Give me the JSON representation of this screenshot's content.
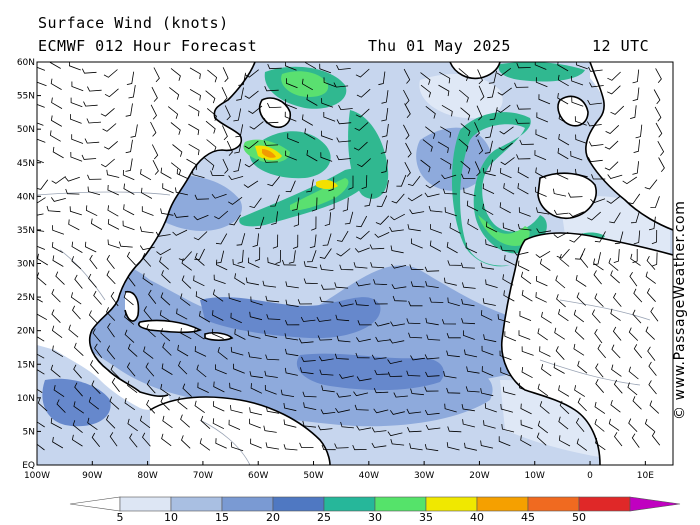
{
  "header": {
    "title": "Surface Wind (knots)",
    "model": "ECMWF 012 Hour Forecast",
    "date": "Thu 01 May 2025",
    "time": "12 UTC"
  },
  "credit": "© www.PassageWeather.com",
  "axes": {
    "lat_labels": [
      "60N",
      "55N",
      "50N",
      "45N",
      "40N",
      "35N",
      "30N",
      "25N",
      "20N",
      "15N",
      "10N",
      "5N",
      "EQ"
    ],
    "lon_labels": [
      "100W",
      "90W",
      "80W",
      "70W",
      "60W",
      "50W",
      "40W",
      "30W",
      "20W",
      "10W",
      "0",
      "10E"
    ],
    "lat_range": [
      0,
      60
    ],
    "lon_range": [
      -100,
      15
    ]
  },
  "colorbar": {
    "labels": [
      "5",
      "10",
      "15",
      "20",
      "25",
      "30",
      "35",
      "40",
      "45",
      "50"
    ],
    "colors": [
      "#ffffff",
      "#dde6f4",
      "#a9bfe2",
      "#7a9ad3",
      "#4f78c2",
      "#26b79a",
      "#55e36a",
      "#f0e800",
      "#f5a000",
      "#f06a20",
      "#e02828",
      "#b00000",
      "#c000c0"
    ]
  },
  "colors": {
    "land": "#ffffff",
    "ocean_light": "#c7d6ee",
    "ocean_mid": "#8eaadc",
    "ocean_strong": "#6688cc",
    "jet_teal": "#30b890",
    "jet_green": "#5ae070",
    "jet_yellow": "#f2e000",
    "jet_orange": "#f29a00"
  }
}
